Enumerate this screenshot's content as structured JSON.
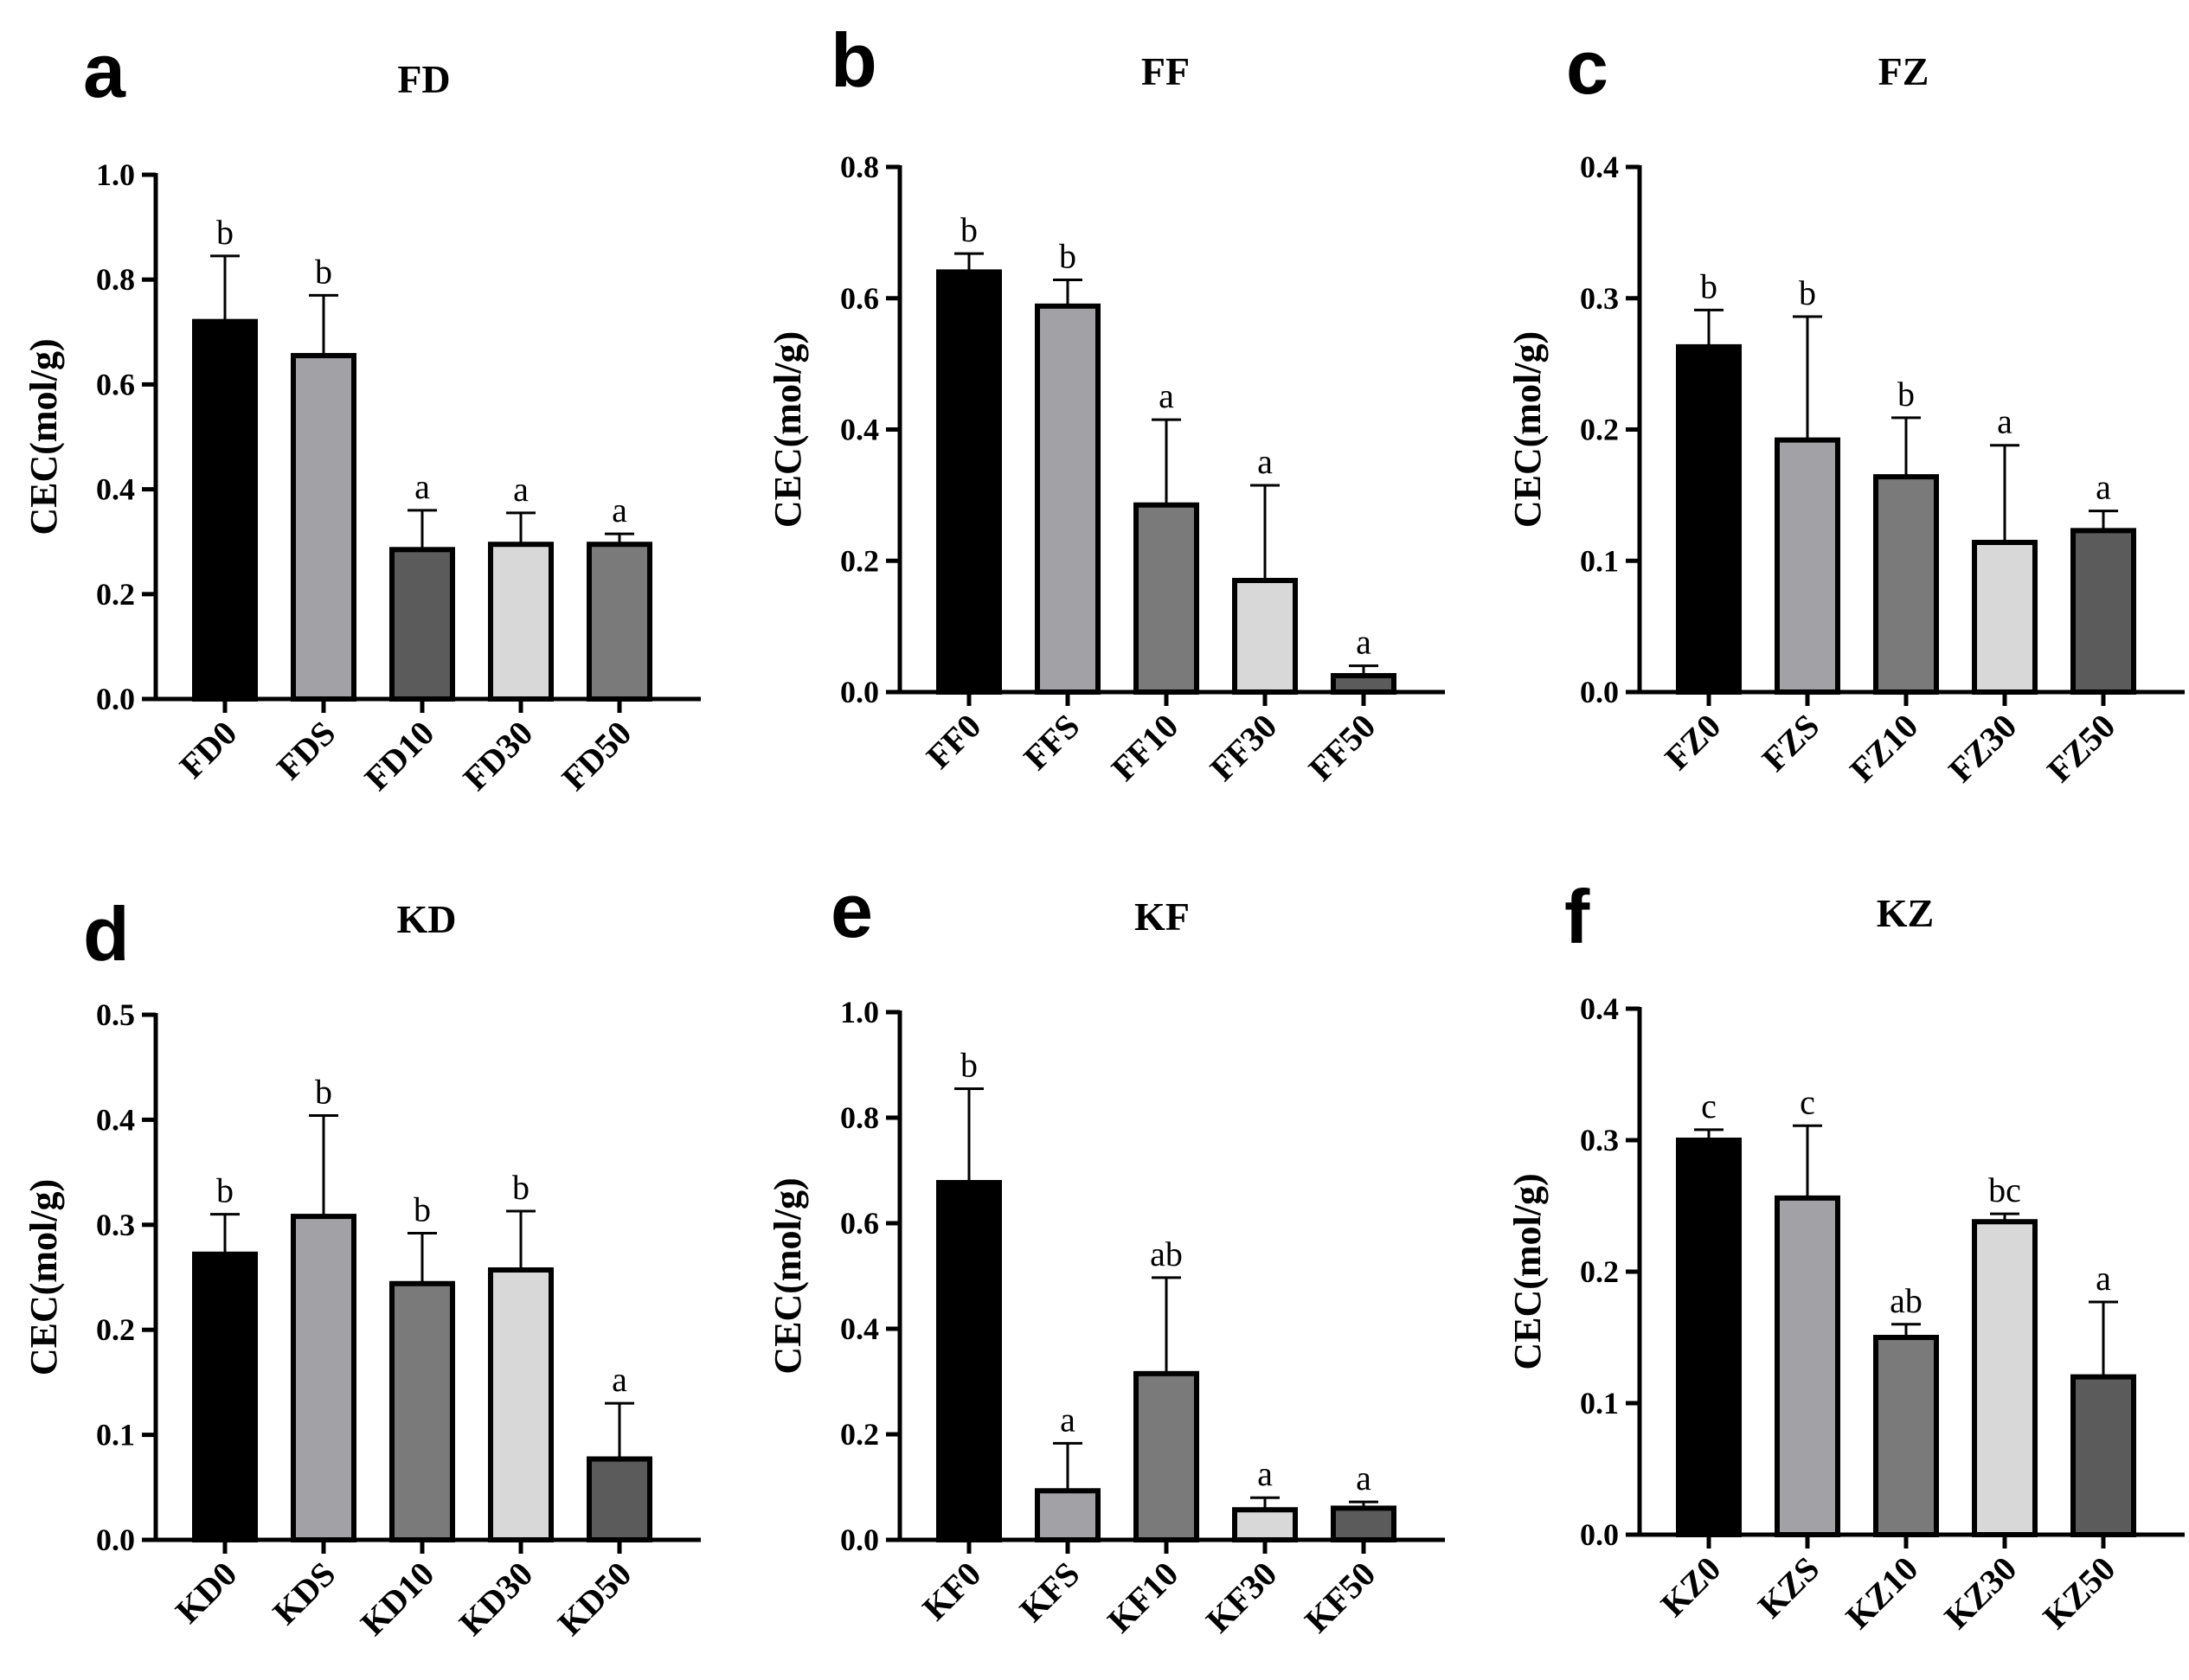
{
  "chart_data": [
    {
      "panel": "a",
      "type": "bar",
      "title": "FD",
      "xlabel": "",
      "ylabel": "CEC(mol/g)",
      "ylim": [
        0,
        1.0
      ],
      "yticks": [
        "0.0",
        "0.2",
        "0.4",
        "0.6",
        "0.8",
        "1.0"
      ],
      "categories": [
        "FD0",
        "FDS",
        "FD10",
        "FD30",
        "FD50"
      ],
      "values": [
        0.72,
        0.655,
        0.285,
        0.295,
        0.295
      ],
      "errors": [
        0.125,
        0.115,
        0.075,
        0.06,
        0.02
      ],
      "significance": [
        "b",
        "b",
        "a",
        "a",
        "a"
      ],
      "bar_colors": [
        "#000000",
        "#a1a1a6",
        "#5b5b5b",
        "#d8d8d8",
        "#7a7a7a"
      ]
    },
    {
      "panel": "b",
      "type": "bar",
      "title": "FF",
      "xlabel": "",
      "ylabel": "CEC(mol/g)",
      "ylim": [
        0,
        0.8
      ],
      "yticks": [
        "0.0",
        "0.2",
        "0.4",
        "0.6",
        "0.8"
      ],
      "categories": [
        "FF0",
        "FFS",
        "FF10",
        "FF30",
        "FF50"
      ],
      "values": [
        0.64,
        0.588,
        0.285,
        0.17,
        0.025
      ],
      "errors": [
        0.028,
        0.04,
        0.13,
        0.145,
        0.015
      ],
      "significance": [
        "b",
        "b",
        "a",
        "a",
        "a"
      ],
      "bar_colors": [
        "#000000",
        "#a1a1a6",
        "#7a7a7a",
        "#d8d8d8",
        "#5b5b5b"
      ]
    },
    {
      "panel": "c",
      "type": "bar",
      "title": "FZ",
      "xlabel": "",
      "ylabel": "CEC(mol/g)",
      "ylim": [
        0,
        0.4
      ],
      "yticks": [
        "0.0",
        "0.1",
        "0.2",
        "0.3",
        "0.4"
      ],
      "categories": [
        "FZ0",
        "FZS",
        "FZ10",
        "FZ30",
        "FZ50"
      ],
      "values": [
        0.263,
        0.192,
        0.164,
        0.114,
        0.123
      ],
      "errors": [
        0.028,
        0.094,
        0.045,
        0.074,
        0.015
      ],
      "significance": [
        "b",
        "b",
        "b",
        "a",
        "a"
      ],
      "bar_colors": [
        "#000000",
        "#a1a1a6",
        "#7a7a7a",
        "#d8d8d8",
        "#5b5b5b"
      ]
    },
    {
      "panel": "d",
      "type": "bar",
      "title": "KD",
      "xlabel": "",
      "ylabel": "CEC(mol/g)",
      "ylim": [
        0,
        0.5
      ],
      "yticks": [
        "0.0",
        "0.1",
        "0.2",
        "0.3",
        "0.4",
        "0.5"
      ],
      "categories": [
        "KD0",
        "KDS",
        "KD10",
        "KD30",
        "KD50"
      ],
      "values": [
        0.272,
        0.308,
        0.244,
        0.257,
        0.077
      ],
      "errors": [
        0.038,
        0.096,
        0.048,
        0.056,
        0.053
      ],
      "significance": [
        "b",
        "b",
        "b",
        "b",
        "a"
      ],
      "bar_colors": [
        "#000000",
        "#a1a1a6",
        "#7a7a7a",
        "#d8d8d8",
        "#5b5b5b"
      ]
    },
    {
      "panel": "e",
      "type": "bar",
      "title": "KF",
      "xlabel": "",
      "ylabel": "CEC(mol/g)",
      "ylim": [
        0,
        1.0
      ],
      "yticks": [
        "0.0",
        "0.2",
        "0.4",
        "0.6",
        "0.8",
        "1.0"
      ],
      "categories": [
        "KF0",
        "KFS",
        "KF10",
        "KF30",
        "KF50"
      ],
      "values": [
        0.677,
        0.093,
        0.315,
        0.057,
        0.06
      ],
      "errors": [
        0.178,
        0.09,
        0.182,
        0.023,
        0.012
      ],
      "significance": [
        "b",
        "a",
        "ab",
        "a",
        "a"
      ],
      "bar_colors": [
        "#000000",
        "#a1a1a6",
        "#7a7a7a",
        "#d8d8d8",
        "#5b5b5b"
      ]
    },
    {
      "panel": "f",
      "type": "bar",
      "title": "KZ",
      "xlabel": "",
      "ylabel": "CEC(mol/g)",
      "ylim": [
        0,
        0.4
      ],
      "yticks": [
        "0.0",
        "0.1",
        "0.2",
        "0.3",
        "0.4"
      ],
      "categories": [
        "KZ0",
        "KZS",
        "KZ10",
        "KZ30",
        "KZ50"
      ],
      "values": [
        0.3,
        0.256,
        0.15,
        0.238,
        0.12
      ],
      "errors": [
        0.008,
        0.055,
        0.01,
        0.006,
        0.057
      ],
      "significance": [
        "c",
        "c",
        "ab",
        "bc",
        "a"
      ],
      "bar_colors": [
        "#000000",
        "#a1a1a6",
        "#7a7a7a",
        "#d8d8d8",
        "#5b5b5b"
      ]
    }
  ]
}
